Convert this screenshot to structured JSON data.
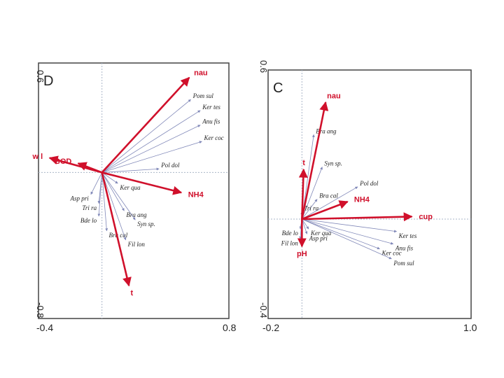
{
  "chart_data": [
    {
      "panel": "D",
      "type": "ordination-biplot",
      "xlim": [
        -0.4,
        0.8
      ],
      "ylim": [
        -0.8,
        0.6
      ],
      "x_tick_labels": [
        "-0.4",
        "0.8"
      ],
      "y_tick_labels": [
        "0.6",
        "-0.8"
      ],
      "environmental_vectors": [
        {
          "name": "nau",
          "x": 0.55,
          "y": 0.52
        },
        {
          "name": "w l",
          "x": -0.33,
          "y": 0.08
        },
        {
          "name": "BOD",
          "x": -0.15,
          "y": 0.05
        },
        {
          "name": "NH4",
          "x": 0.5,
          "y": -0.11
        },
        {
          "name": "t",
          "x": 0.17,
          "y": -0.62
        }
      ],
      "species": [
        {
          "name": "Pom sul",
          "x": 0.56,
          "y": 0.4
        },
        {
          "name": "Ker tes",
          "x": 0.62,
          "y": 0.34
        },
        {
          "name": "Anu fis",
          "x": 0.62,
          "y": 0.26
        },
        {
          "name": "Ker coc",
          "x": 0.63,
          "y": 0.17
        },
        {
          "name": "Pol dol",
          "x": 0.36,
          "y": 0.02
        },
        {
          "name": "Ker qua",
          "x": 0.1,
          "y": -0.06
        },
        {
          "name": "Asp pri",
          "x": -0.07,
          "y": -0.12
        },
        {
          "name": "Tri ra",
          "x": -0.02,
          "y": -0.17
        },
        {
          "name": "Bra ang",
          "x": 0.14,
          "y": -0.21
        },
        {
          "name": "Syn sp.",
          "x": 0.21,
          "y": -0.26
        },
        {
          "name": "Bde lo",
          "x": -0.02,
          "y": -0.24
        },
        {
          "name": "Bra cal",
          "x": 0.03,
          "y": -0.32
        },
        {
          "name": "Fil lon",
          "x": 0.15,
          "y": -0.37
        }
      ]
    },
    {
      "panel": "C",
      "type": "ordination-biplot",
      "xlim": [
        -0.2,
        1.0
      ],
      "ylim": [
        -0.4,
        0.6
      ],
      "x_tick_labels": [
        "-0.2",
        "1.0"
      ],
      "y_tick_labels": [
        "0.6",
        "-0.4"
      ],
      "environmental_vectors": [
        {
          "name": "nau",
          "x": 0.14,
          "y": 0.47
        },
        {
          "name": "t",
          "x": 0.01,
          "y": 0.2
        },
        {
          "name": "NH4",
          "x": 0.27,
          "y": 0.07
        },
        {
          "name": "cup",
          "x": 0.65,
          "y": 0.01
        },
        {
          "name": "pH",
          "x": 0.0,
          "y": -0.11
        }
      ],
      "species": [
        {
          "name": "Bra ang",
          "x": 0.07,
          "y": 0.34
        },
        {
          "name": "Syn sp.",
          "x": 0.12,
          "y": 0.21
        },
        {
          "name": "Pol dol",
          "x": 0.33,
          "y": 0.13
        },
        {
          "name": "Bra cal",
          "x": 0.09,
          "y": 0.08
        },
        {
          "name": "Tri ra",
          "x": 0.0,
          "y": 0.03
        },
        {
          "name": "Bde lo",
          "x": -0.01,
          "y": -0.04
        },
        {
          "name": "Ker qua",
          "x": 0.04,
          "y": -0.04
        },
        {
          "name": "Asp pri",
          "x": 0.03,
          "y": -0.06
        },
        {
          "name": "Fil lon",
          "x": -0.01,
          "y": -0.08
        },
        {
          "name": "Ker tes",
          "x": 0.56,
          "y": -0.05
        },
        {
          "name": "Anu fis",
          "x": 0.54,
          "y": -0.1
        },
        {
          "name": "Ker coc",
          "x": 0.46,
          "y": -0.12
        },
        {
          "name": "Pom sul",
          "x": 0.53,
          "y": -0.16
        }
      ]
    }
  ],
  "colors": {
    "env": "#d0102b",
    "species": "#8088b8"
  }
}
